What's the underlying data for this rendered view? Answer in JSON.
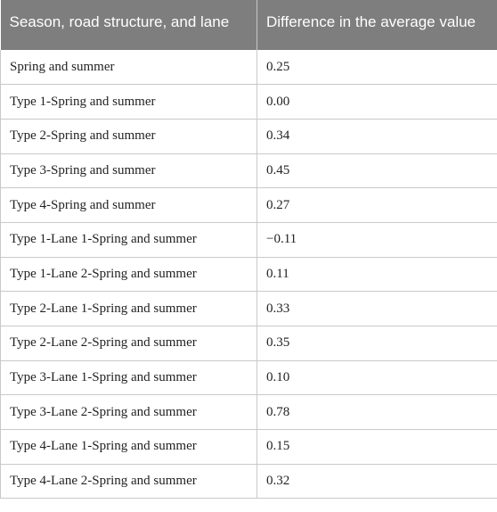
{
  "table": {
    "headers": [
      "Season, road structure, and lane",
      "Difference in the average value"
    ],
    "rows": [
      [
        "Spring and summer",
        "0.25"
      ],
      [
        "Type 1-Spring and summer",
        "0.00"
      ],
      [
        "Type 2-Spring and summer",
        "0.34"
      ],
      [
        "Type 3-Spring and summer",
        "0.45"
      ],
      [
        "Type 4-Spring and summer",
        "0.27"
      ],
      [
        "Type 1-Lane 1-Spring and summer",
        "−0.11"
      ],
      [
        "Type 1-Lane 2-Spring and summer",
        "0.11"
      ],
      [
        "Type 2-Lane 1-Spring and summer",
        "0.33"
      ],
      [
        "Type 2-Lane 2-Spring and summer",
        "0.35"
      ],
      [
        "Type 3-Lane 1-Spring and summer",
        "0.10"
      ],
      [
        "Type 3-Lane 2-Spring and summer",
        "0.78"
      ],
      [
        "Type 4-Lane 1-Spring and summer",
        "0.15"
      ],
      [
        "Type 4-Lane 2-Spring and summer",
        "0.32"
      ]
    ]
  }
}
